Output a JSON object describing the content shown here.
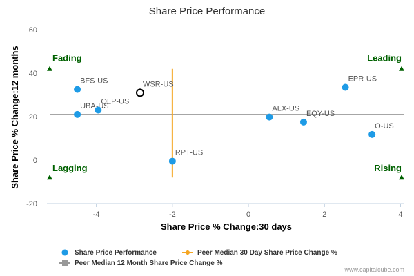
{
  "chart_data": {
    "type": "scatter",
    "title": "Share Price Performance",
    "xlabel": "Share Price % Change:30 days",
    "ylabel": "Share Price % Change:12 months",
    "xlim": [
      -5.3,
      4.1
    ],
    "ylim": [
      -20,
      60
    ],
    "xticks": [
      -4,
      -2,
      0,
      2,
      4
    ],
    "yticks": [
      -20,
      0,
      20,
      40,
      60
    ],
    "grid": false,
    "points": [
      {
        "label": "BFS-US",
        "x": -4.5,
        "y": 32.5,
        "highlight": false
      },
      {
        "label": "UBA-US",
        "x": -4.5,
        "y": 21.0,
        "highlight": false
      },
      {
        "label": "OLP-US",
        "x": -3.95,
        "y": 23.0,
        "highlight": false
      },
      {
        "label": "WSR-US",
        "x": -2.85,
        "y": 31.0,
        "highlight": true
      },
      {
        "label": "RPT-US",
        "x": -2.0,
        "y": -0.5,
        "highlight": false
      },
      {
        "label": "ALX-US",
        "x": 0.55,
        "y": 19.8,
        "highlight": false
      },
      {
        "label": "EQY-US",
        "x": 1.45,
        "y": 17.5,
        "highlight": false
      },
      {
        "label": "EPR-US",
        "x": 2.55,
        "y": 33.5,
        "highlight": false
      },
      {
        "label": "O-US",
        "x": 3.25,
        "y": 11.8,
        "highlight": false
      }
    ],
    "peer_median_30d": -2.0,
    "peer_median_30d_range": [
      -8,
      42
    ],
    "peer_median_12m": 21.0,
    "quadrants": {
      "top_left": "Fading",
      "top_right": "Leading",
      "bottom_left": "Lagging",
      "bottom_right": "Rising"
    },
    "legend": [
      "Share Price Performance",
      "Peer Median 30 Day Share Price Change %",
      "Peer Median 12 Month Share Price Change %"
    ],
    "legend_position": "bottom",
    "colors": {
      "points": "#1e9be6",
      "highlight_fill": "#ffffff",
      "highlight_stroke": "#000000",
      "peer_30d": "#f5a623",
      "peer_12m": "#999999",
      "quadrant": "#006100"
    }
  },
  "credit": "www.capitalcube.com"
}
